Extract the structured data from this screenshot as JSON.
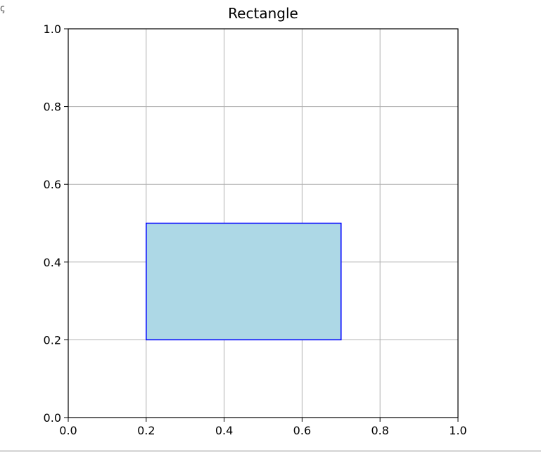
{
  "chart_data": {
    "type": "rectangle",
    "title": "Rectangle",
    "xlabel": "",
    "ylabel": "",
    "xlim": [
      0.0,
      1.0
    ],
    "ylim": [
      0.0,
      1.0
    ],
    "x_ticks": [
      "0.0",
      "0.2",
      "0.4",
      "0.6",
      "0.8",
      "1.0"
    ],
    "y_ticks": [
      "0.0",
      "0.2",
      "0.4",
      "0.6",
      "0.8",
      "1.0"
    ],
    "grid": true,
    "shapes": [
      {
        "kind": "rectangle",
        "x": 0.2,
        "y": 0.2,
        "width": 0.5,
        "height": 0.3,
        "facecolor": "#add8e6",
        "edgecolor": "#0000ff"
      }
    ]
  },
  "corner_glyph": "ꞔ",
  "colors": {
    "grid": "#b0b0b0",
    "axis": "#000000",
    "background": "#ffffff"
  }
}
